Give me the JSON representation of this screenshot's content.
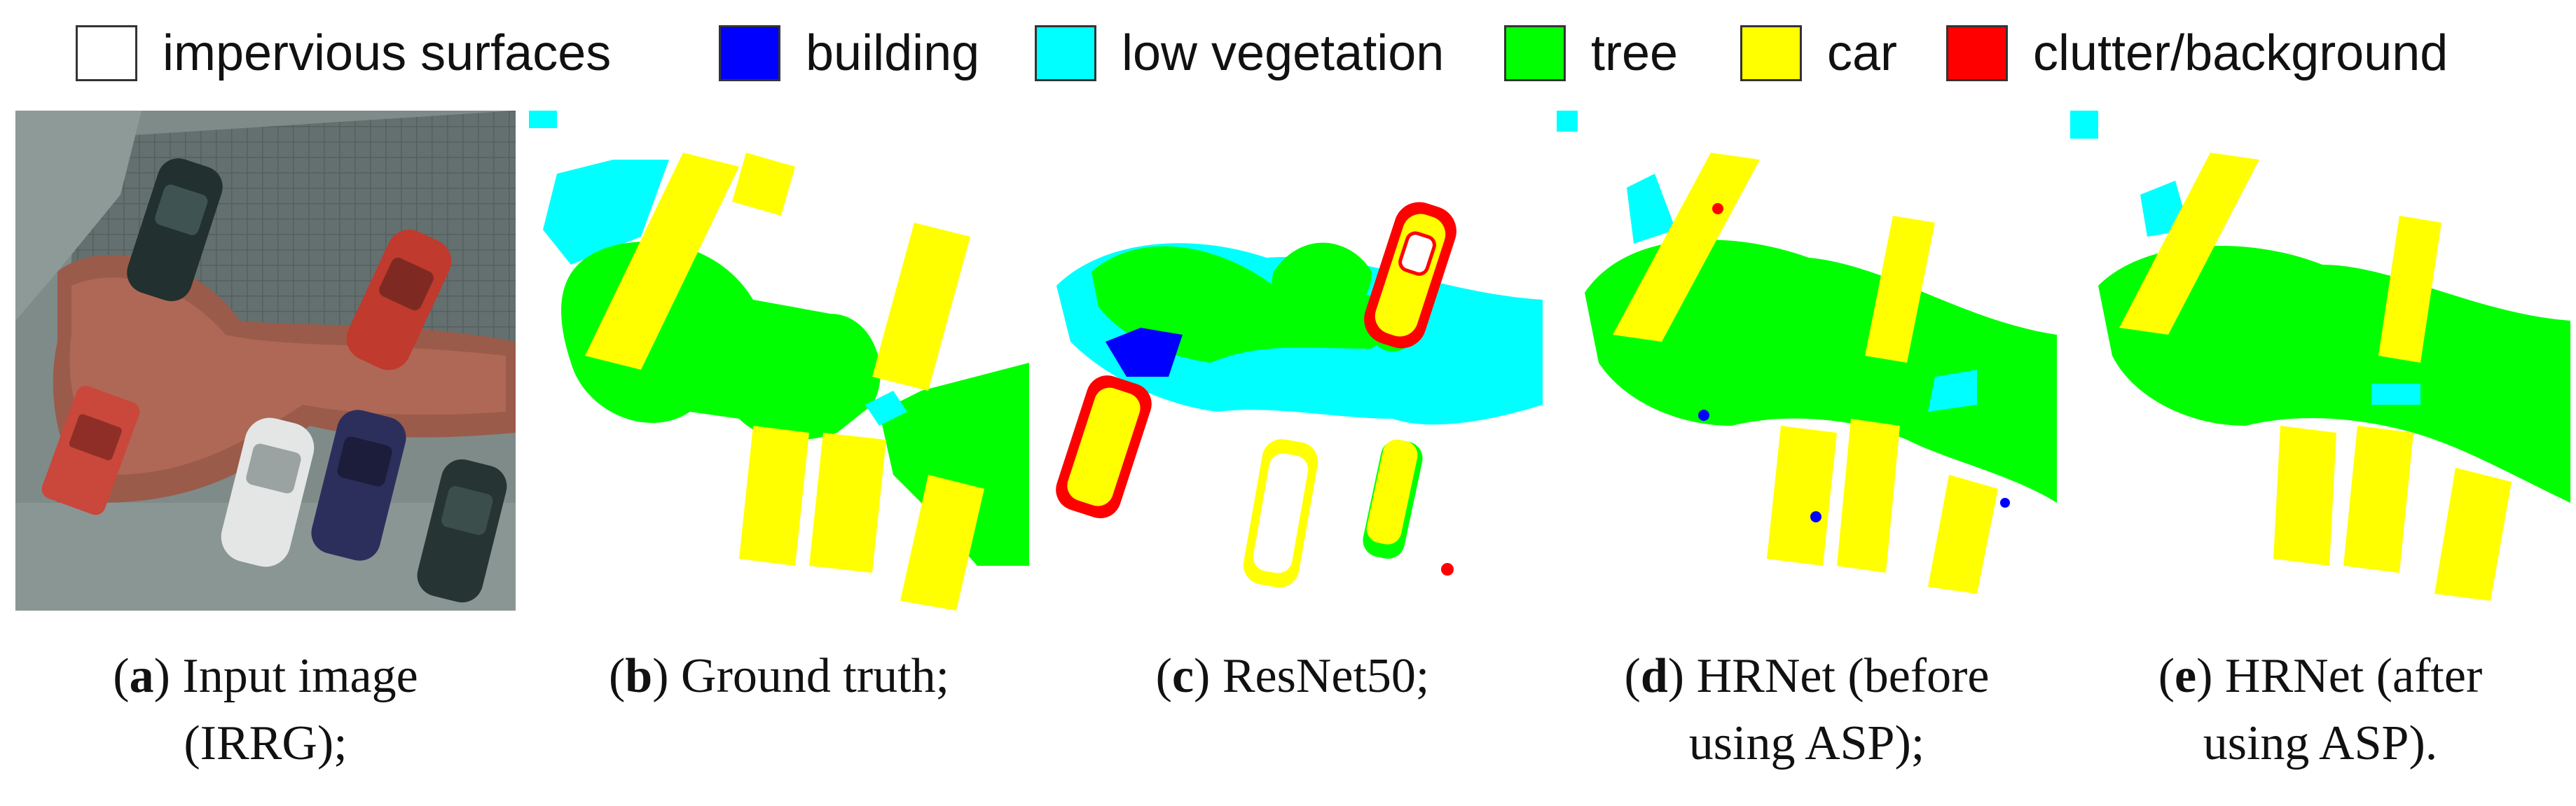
{
  "legend": {
    "items": [
      {
        "label": "impervious surfaces",
        "color": "#ffffff"
      },
      {
        "label": "building",
        "color": "#0000ff"
      },
      {
        "label": "low vegetation",
        "color": "#00ffff"
      },
      {
        "label": "tree",
        "color": "#00ff00"
      },
      {
        "label": "car",
        "color": "#ffff00"
      },
      {
        "label": "clutter/background",
        "color": "#ff0000"
      }
    ]
  },
  "panels": [
    {
      "caption_letter": "a",
      "caption_line1": " Input image",
      "caption_line2": "(IRRG);"
    },
    {
      "caption_letter": "b",
      "caption_line1": " Ground truth;",
      "caption_line2": ""
    },
    {
      "caption_letter": "c",
      "caption_line1": " ResNet50;",
      "caption_line2": ""
    },
    {
      "caption_letter": "d",
      "caption_line1": " HRNet (before",
      "caption_line2": "using ASP);"
    },
    {
      "caption_letter": "e",
      "caption_line1": " HRNet (after",
      "caption_line2": "using ASP)."
    }
  ]
}
